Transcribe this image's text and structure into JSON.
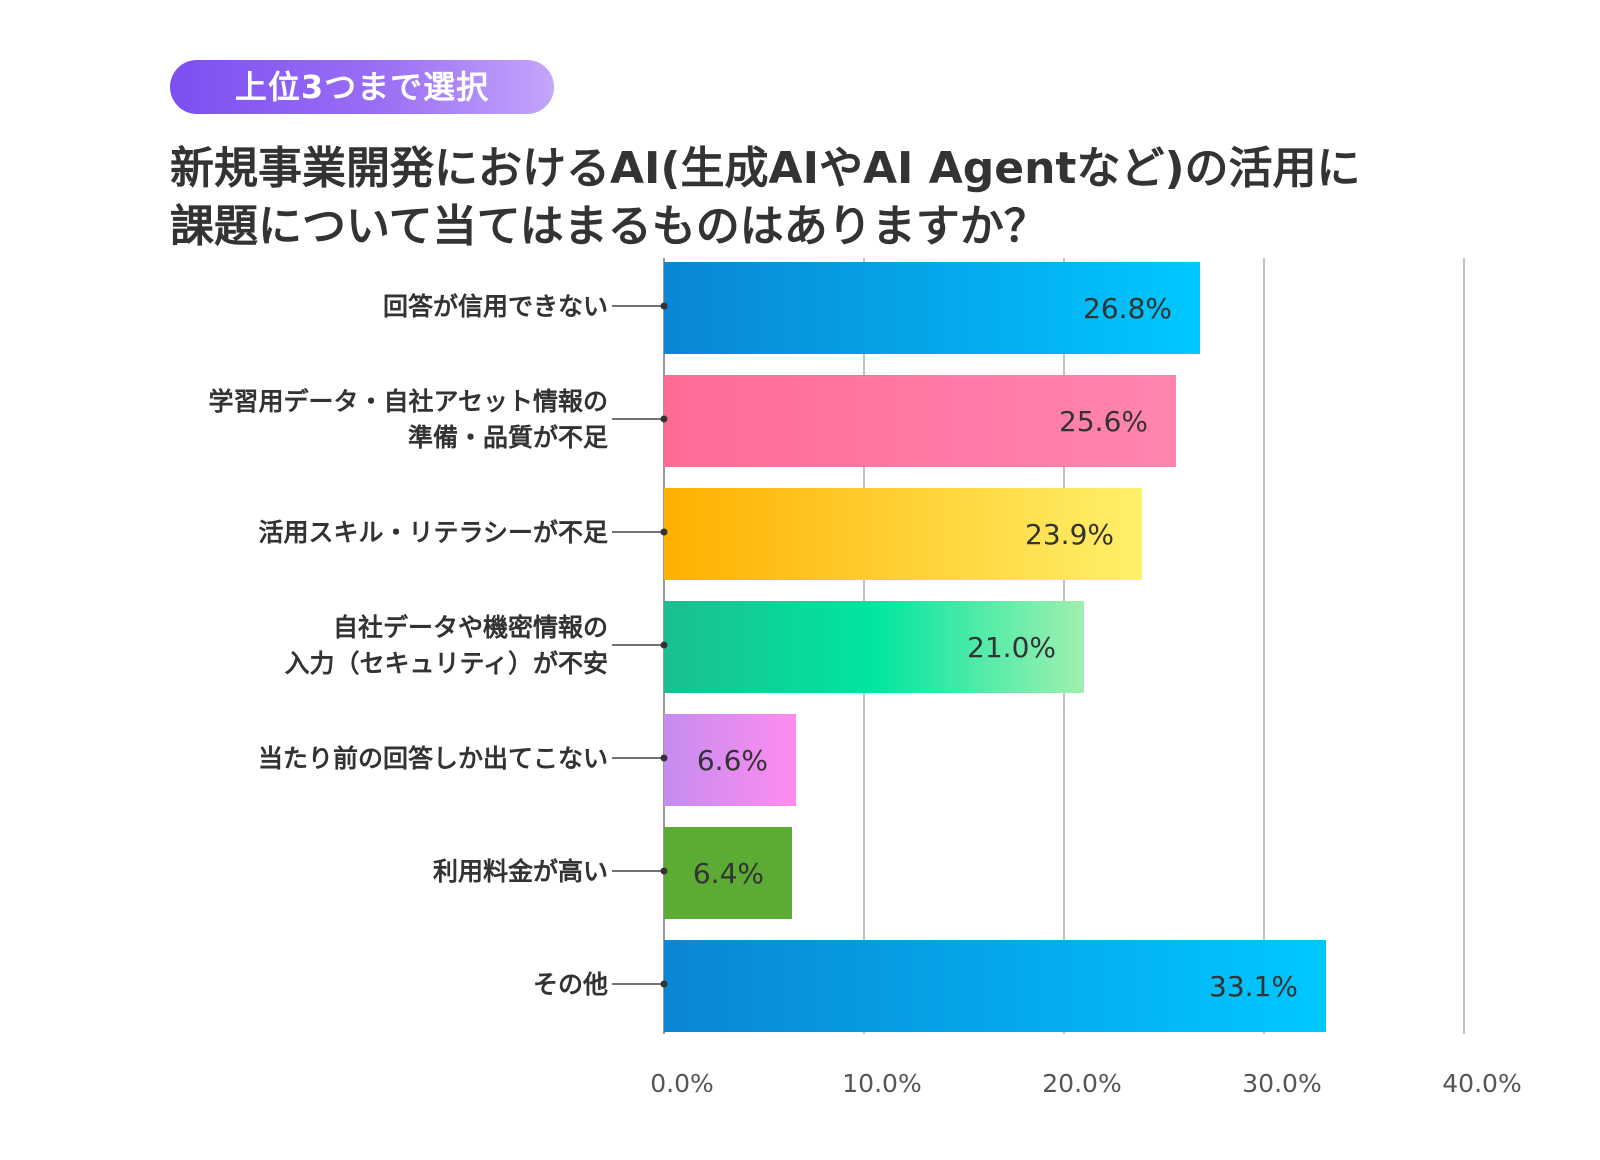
{
  "badge": "上位3つまで選択",
  "title_line1": "新規事業開発におけるAI(生成AIやAI Agentなど)の活用に",
  "title_line2": "課題について当てはまるものはありますか？",
  "chart_data": {
    "type": "bar",
    "orientation": "horizontal",
    "categories": [
      [
        "回答が信用できない"
      ],
      [
        "学習用データ・自社アセット情報の",
        "準備・品質が不足"
      ],
      [
        "活用スキル・リテラシーが不足"
      ],
      [
        "自社データや機密情報の",
        "入力（セキュリティ）が不安"
      ],
      [
        "当たり前の回答しか出てこない"
      ],
      [
        "利用料金が高い"
      ],
      [
        "その他"
      ]
    ],
    "values": [
      26.8,
      25.6,
      23.9,
      21.0,
      6.6,
      6.4,
      33.1
    ],
    "value_labels": [
      "26.8%",
      "25.6%",
      "23.9%",
      "21.0%",
      "6.6%",
      "6.4%",
      "33.1%"
    ],
    "xlim": [
      0,
      40
    ],
    "xticks": [
      0,
      10,
      20,
      30,
      40
    ],
    "xtick_labels": [
      "0.0%",
      "10.0%",
      "20.0%",
      "30.0%",
      "40.0%"
    ],
    "grid": true,
    "colors": [
      [
        "#0a86d4",
        "#00c8ff"
      ],
      [
        "#ff6b96",
        "#ff85b0"
      ],
      [
        "#ffb000",
        "#fff06a"
      ],
      [
        "#1bbf8f",
        "#00e6a0",
        "#a0f0b0"
      ],
      [
        "#c58cf0",
        "#ff8cf0"
      ],
      [
        "#5cab35",
        "#5cab35"
      ],
      [
        "#0a86d4",
        "#00c8ff"
      ]
    ]
  }
}
